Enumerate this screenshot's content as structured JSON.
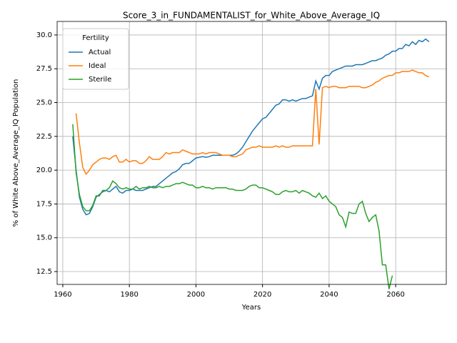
{
  "chart_data": {
    "type": "line",
    "title": "Score_3_in_FUNDAMENTALIST_for_White_Above_Average_IQ",
    "x_label": "Years",
    "y_label": "% of White Above_Average_IQ Population",
    "legend_title": "Fertility",
    "legend": "upper left",
    "grid": true,
    "xlim": [
      1958.3,
      2075.2
    ],
    "xticks": [
      1960,
      1980,
      2000,
      2020,
      2040,
      2060
    ],
    "ylim": [
      11.55,
      31.0
    ],
    "yticks": [
      12.5,
      {
        "value": 15,
        "label": "15.0"
      },
      17.5,
      {
        "value": 20,
        "label": "20.0"
      },
      22.5,
      {
        "value": 25,
        "label": "25.0"
      },
      27.5,
      {
        "value": 30,
        "label": "30.0"
      }
    ],
    "x": [
      1963,
      1964,
      1965,
      1966,
      1967,
      1968,
      1969,
      1970,
      1971,
      1972,
      1973,
      1974,
      1975,
      1976,
      1977,
      1978,
      1979,
      1980,
      1981,
      1982,
      1983,
      1984,
      1985,
      1986,
      1987,
      1988,
      1989,
      1990,
      1991,
      1992,
      1993,
      1994,
      1995,
      1996,
      1997,
      1998,
      1999,
      2000,
      2001,
      2002,
      2003,
      2004,
      2005,
      2006,
      2007,
      2008,
      2009,
      2010,
      2011,
      2012,
      2013,
      2014,
      2015,
      2016,
      2017,
      2018,
      2019,
      2020,
      2021,
      2022,
      2023,
      2024,
      2025,
      2026,
      2027,
      2028,
      2029,
      2030,
      2031,
      2032,
      2033,
      2034,
      2035,
      2036,
      2037,
      2038,
      2039,
      2040,
      2041,
      2042,
      2043,
      2044,
      2045,
      2046,
      2047,
      2048,
      2049,
      2050,
      2051,
      2052,
      2053,
      2054,
      2055,
      2056,
      2057,
      2058,
      2059,
      2060,
      2061,
      2062,
      2063,
      2064,
      2065,
      2066,
      2067,
      2068,
      2069,
      2070
    ],
    "series": [
      {
        "name": "Actual",
        "color": "#1f77b4",
        "values": [
          22.5,
          20.0,
          18.0,
          17.1,
          16.7,
          16.8,
          17.3,
          18.0,
          18.2,
          18.4,
          18.5,
          18.4,
          18.6,
          18.8,
          18.4,
          18.3,
          18.5,
          18.5,
          18.6,
          18.5,
          18.5,
          18.5,
          18.6,
          18.7,
          18.8,
          18.8,
          19.0,
          19.2,
          19.4,
          19.6,
          19.8,
          19.9,
          20.1,
          20.4,
          20.5,
          20.5,
          20.7,
          20.9,
          20.95,
          21.0,
          20.95,
          21.0,
          21.1,
          21.1,
          21.1,
          21.1,
          21.1,
          21.1,
          21.1,
          21.2,
          21.4,
          21.7,
          22.1,
          22.5,
          22.9,
          23.2,
          23.5,
          23.8,
          23.9,
          24.2,
          24.5,
          24.8,
          24.9,
          25.2,
          25.2,
          25.1,
          25.2,
          25.1,
          25.2,
          25.3,
          25.3,
          25.4,
          25.5,
          26.6,
          26.0,
          26.8,
          27.0,
          27.0,
          27.3,
          27.4,
          27.5,
          27.6,
          27.7,
          27.7,
          27.7,
          27.8,
          27.8,
          27.8,
          27.9,
          28.0,
          28.1,
          28.1,
          28.2,
          28.3,
          28.5,
          28.6,
          28.8,
          28.8,
          29.0,
          29.0,
          29.3,
          29.2,
          29.5,
          29.3,
          29.6,
          29.5,
          29.7,
          29.5
        ]
      },
      {
        "name": "Ideal",
        "color": "#ff7f0e",
        "values": [
          null,
          24.2,
          22.0,
          20.2,
          19.7,
          20.0,
          20.4,
          20.6,
          20.8,
          20.9,
          20.9,
          20.8,
          21.0,
          21.1,
          20.6,
          20.6,
          20.8,
          20.6,
          20.7,
          20.7,
          20.5,
          20.5,
          20.7,
          21.0,
          20.8,
          20.8,
          20.8,
          21.0,
          21.3,
          21.2,
          21.3,
          21.3,
          21.3,
          21.5,
          21.4,
          21.3,
          21.2,
          21.2,
          21.2,
          21.3,
          21.2,
          21.3,
          21.3,
          21.3,
          21.2,
          21.1,
          21.1,
          21.1,
          21.0,
          21.0,
          21.1,
          21.2,
          21.5,
          21.6,
          21.7,
          21.7,
          21.8,
          21.7,
          21.7,
          21.7,
          21.7,
          21.8,
          21.7,
          21.8,
          21.7,
          21.7,
          21.8,
          21.8,
          21.8,
          21.8,
          21.8,
          21.8,
          21.8,
          26.0,
          21.9,
          26.1,
          26.2,
          26.1,
          26.2,
          26.2,
          26.1,
          26.1,
          26.1,
          26.2,
          26.2,
          26.2,
          26.2,
          26.1,
          26.1,
          26.2,
          26.3,
          26.5,
          26.6,
          26.8,
          26.9,
          27.0,
          27.0,
          27.2,
          27.2,
          27.3,
          27.3,
          27.3,
          27.4,
          27.3,
          27.2,
          27.2,
          27.0,
          26.9
        ]
      },
      {
        "name": "Sterile",
        "color": "#2ca02c",
        "values": [
          23.4,
          19.8,
          18.2,
          17.3,
          17.0,
          17.0,
          17.4,
          18.1,
          18.1,
          18.5,
          18.5,
          18.7,
          19.2,
          19.0,
          18.7,
          18.6,
          18.7,
          18.6,
          18.6,
          18.8,
          18.6,
          18.7,
          18.7,
          18.8,
          18.7,
          18.7,
          18.8,
          18.7,
          18.8,
          18.8,
          18.9,
          19.0,
          19.0,
          19.1,
          19.0,
          18.9,
          18.9,
          18.7,
          18.7,
          18.8,
          18.7,
          18.7,
          18.6,
          18.7,
          18.7,
          18.7,
          18.7,
          18.6,
          18.6,
          18.5,
          18.5,
          18.5,
          18.6,
          18.8,
          18.9,
          18.9,
          18.7,
          18.7,
          18.6,
          18.5,
          18.4,
          18.2,
          18.2,
          18.4,
          18.5,
          18.4,
          18.4,
          18.5,
          18.3,
          18.5,
          18.4,
          18.3,
          18.1,
          18.0,
          18.3,
          17.9,
          18.1,
          17.7,
          17.5,
          17.3,
          16.7,
          16.5,
          15.8,
          16.9,
          16.8,
          16.8,
          17.5,
          17.7,
          16.8,
          16.2,
          16.5,
          16.7,
          15.5,
          13.0,
          13.0,
          11.2,
          12.2,
          null,
          null,
          null,
          null,
          null,
          null,
          null,
          null,
          null,
          null,
          null
        ]
      }
    ]
  }
}
